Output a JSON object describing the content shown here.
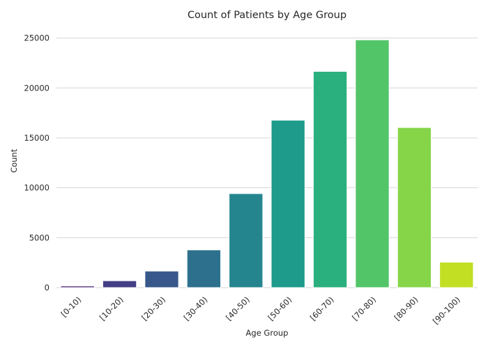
{
  "chart_data": {
    "type": "bar",
    "title": "Count of Patients by Age Group",
    "xlabel": "Age Group",
    "ylabel": "Count",
    "categories": [
      "[0-10)",
      "[10-20)",
      "[20-30)",
      "[30-40)",
      "[40-50)",
      "[50-60)",
      "[60-70)",
      "[70-80)",
      "[80-90)",
      "[90-100)"
    ],
    "values": [
      160,
      690,
      1660,
      3780,
      9420,
      16770,
      21660,
      24820,
      16040,
      2550
    ],
    "ylim": [
      0,
      26300
    ],
    "yticks": [
      0,
      5000,
      10000,
      15000,
      20000,
      25000
    ],
    "grid": true,
    "bar_colors": [
      "#482575",
      "#433e85",
      "#38588c",
      "#2d708e",
      "#25858e",
      "#1e9b8a",
      "#2ab07f",
      "#52c569",
      "#86d549",
      "#c2df23"
    ]
  }
}
